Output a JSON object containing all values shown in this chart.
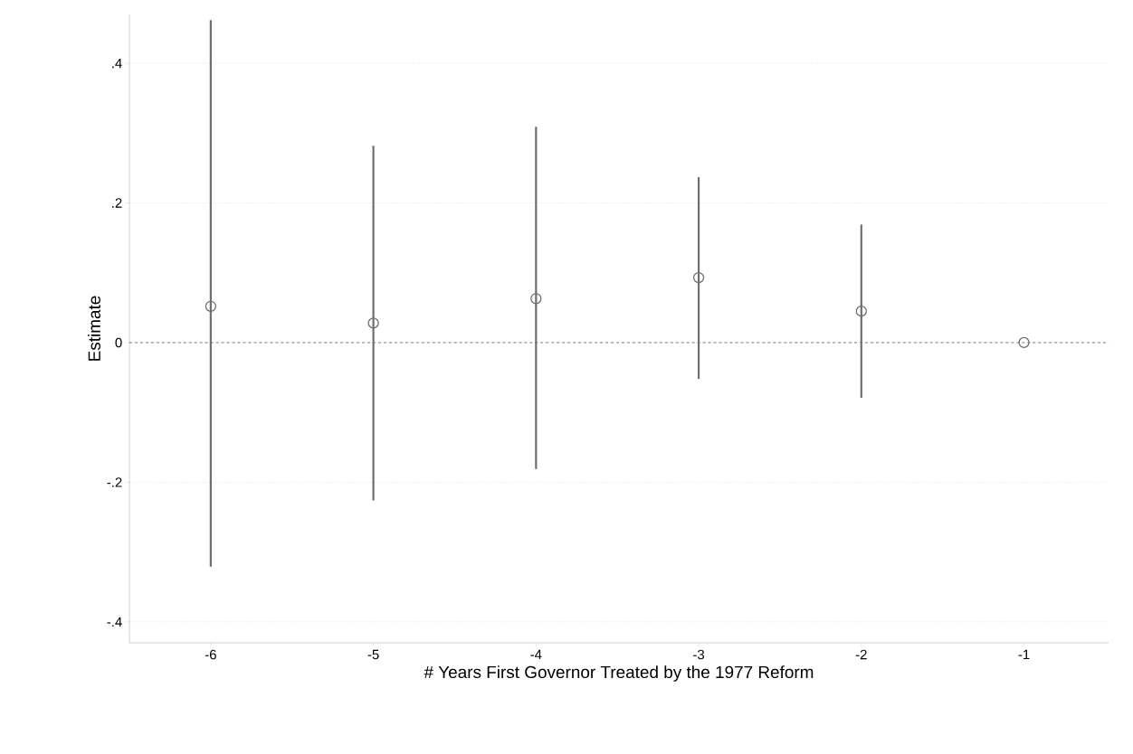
{
  "chart_data": {
    "type": "scatter",
    "xlabel": "# Years First Governor Treated by the 1977 Reform",
    "ylabel": "Estimate",
    "x": [
      -6,
      -5,
      -4,
      -3,
      -2,
      -1
    ],
    "series": [
      {
        "color": "#6e6e6e",
        "values": [
          0.052,
          0.028,
          0.063,
          0.093,
          0.045,
          0
        ],
        "errors": [
          [
            -0.321,
            0.462
          ],
          [
            -0.226,
            0.282
          ],
          [
            -0.181,
            0.309
          ],
          [
            -0.052,
            0.237
          ],
          [
            -0.079,
            0.169
          ],
          null
        ]
      }
    ],
    "xlim": [
      -6.5,
      -0.48
    ],
    "ylim": [
      -0.43,
      0.47
    ],
    "xticks": [
      -6,
      -5,
      -4,
      -3,
      -2,
      -1
    ],
    "yticks": [
      {
        "value": -0.4,
        "label": "-.4"
      },
      {
        "value": -0.2,
        "label": "-.2"
      },
      {
        "value": 0,
        "label": "0"
      },
      {
        "value": 0.2,
        "label": ".2"
      },
      {
        "value": 0.4,
        "label": ".4"
      }
    ],
    "grid": "y",
    "marker": "circle",
    "ref_lines": [
      {
        "axis": "y",
        "value": 0,
        "color": "#7a7a7a",
        "line_style": "dashed"
      }
    ]
  }
}
